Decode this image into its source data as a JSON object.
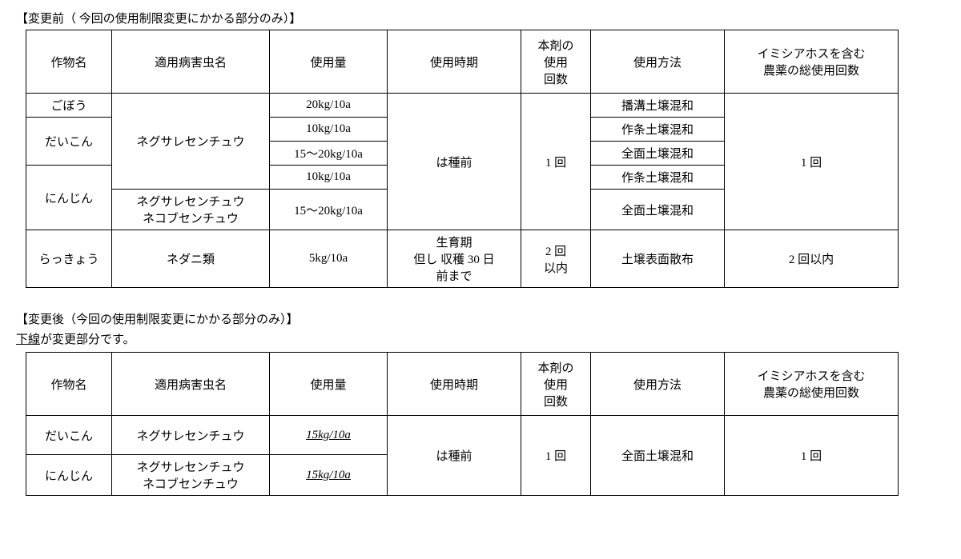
{
  "before": {
    "title": "【変更前（ 今回の使用制限変更にかかる部分のみ）】",
    "headers": {
      "crop": "作物名",
      "pest": "適用病害虫名",
      "amount": "使用量",
      "timing": "使用時期",
      "count": "本剤の\n使用\n回数",
      "method": "使用方法",
      "total": "イミシアホスを含む\n農薬の総使用回数"
    },
    "crops": {
      "gobo": "ごぼう",
      "daikon": "だいこん",
      "ninjin": "にんじん",
      "rakkyo": "らっきょう"
    },
    "pests": {
      "negu": "ネグサレセンチュウ",
      "negu_nekobu": "ネグサレセンチュウ\nネコブセンチュウ",
      "nedani": "ネダニ類"
    },
    "amounts": {
      "a20": "20kg/10a",
      "a10_1": "10kg/10a",
      "a15_20_1": "15～20kg/10a",
      "a10_2": "10kg/10a",
      "a15_20_2": "15～20kg/10a",
      "a5": "5kg/10a"
    },
    "timings": {
      "hashumae": "は種前",
      "seiiku": "生育期\n但し 収穫 30 日\n前まで"
    },
    "counts": {
      "once": "1 回",
      "twice": "2 回\n以内"
    },
    "methods": {
      "hamizo": "播溝土壌混和",
      "sakujo1": "作条土壌混和",
      "zenmen1": "全面土壌混和",
      "sakujo2": "作条土壌混和",
      "zenmen2": "全面土壌混和",
      "hyomen": "土壌表面散布"
    },
    "totals": {
      "once": "1 回",
      "twice": "2 回以内"
    }
  },
  "after": {
    "title": "【変更後（今回の使用制限変更にかかる部分のみ）】",
    "note_ul": "下線",
    "note_rest": "が変更部分です。",
    "headers": {
      "crop": "作物名",
      "pest": "適用病害虫名",
      "amount": "使用量",
      "timing": "使用時期",
      "count": "本剤の\n使用\n回数",
      "method": "使用方法",
      "total": "イミシアホスを含む\n農薬の総使用回数"
    },
    "crops": {
      "daikon": "だいこん",
      "ninjin": "にんじん"
    },
    "pests": {
      "negu": "ネグサレセンチュウ",
      "negu_nekobu": "ネグサレセンチュウ\nネコブセンチュウ"
    },
    "amounts": {
      "d": "15kg/10a",
      "n": "15kg/10a"
    },
    "timing": "は種前",
    "count": "1 回",
    "method": "全面土壌混和",
    "total": "1 回"
  }
}
